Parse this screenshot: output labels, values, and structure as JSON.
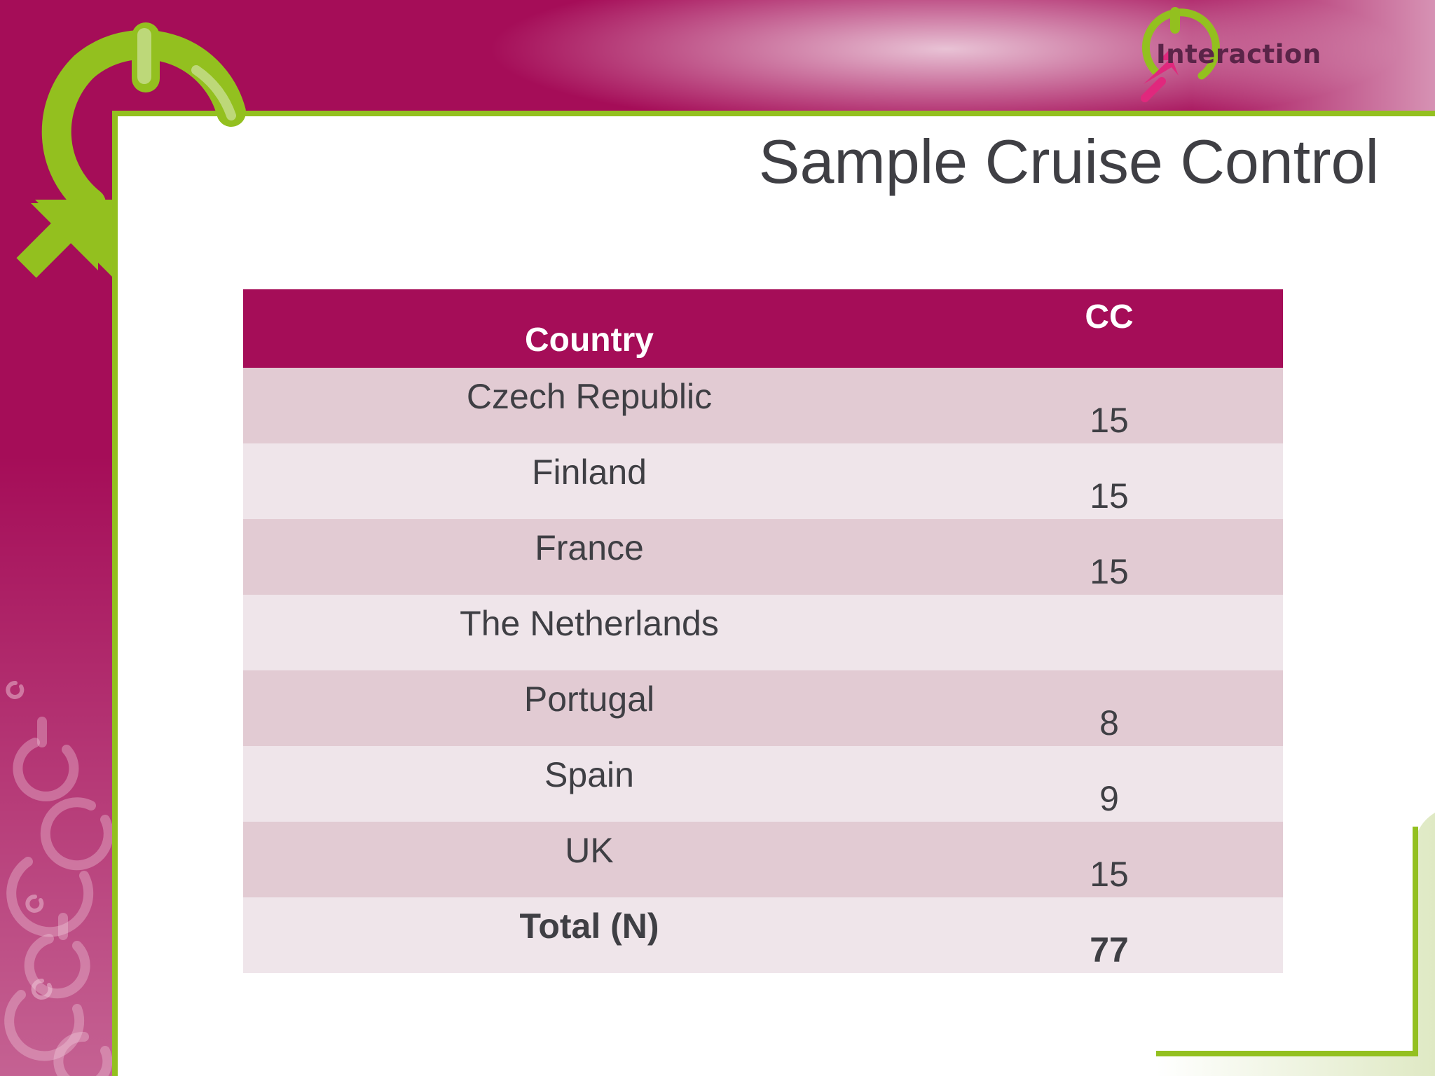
{
  "logo": {
    "text": "Interaction"
  },
  "slide": {
    "title": "Sample Cruise Control"
  },
  "table": {
    "headers": {
      "country": "Country",
      "cc": "CC"
    },
    "rows": [
      {
        "country": "Czech Republic",
        "cc": "15"
      },
      {
        "country": "Finland",
        "cc": "15"
      },
      {
        "country": "France",
        "cc": "15"
      },
      {
        "country": "The Netherlands",
        "cc": ""
      },
      {
        "country": "Portugal",
        "cc": "8"
      },
      {
        "country": "Spain",
        "cc": "9"
      },
      {
        "country": "UK",
        "cc": "15"
      }
    ],
    "total": {
      "country": "Total (N)",
      "cc": "77"
    }
  },
  "colors": {
    "brand_magenta": "#a50d58",
    "brand_green": "#93c01f",
    "title_text": "#3f3f44",
    "row_dark": "#e2cbd3",
    "row_light": "#efe5ea"
  }
}
